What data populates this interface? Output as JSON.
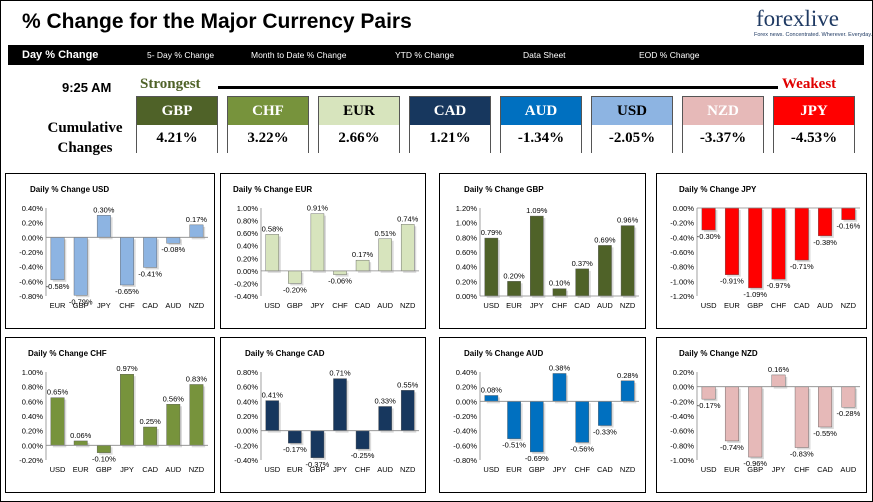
{
  "header": {
    "title": "% Change for the Major Currency Pairs",
    "logo_word_a": "fore",
    "logo_word_x": "x",
    "logo_word_b": "live",
    "logo_tagline": "Forex news. Concentrated. Wherever. Everyday."
  },
  "nav": [
    {
      "label": "Day % Change",
      "active": true
    },
    {
      "label": "5- Day % Change",
      "active": false
    },
    {
      "label": "Month to Date % Change",
      "active": false
    },
    {
      "label": "YTD % Change",
      "active": false
    },
    {
      "label": "Data Sheet",
      "active": false
    },
    {
      "label": "EOD % Change",
      "active": false
    }
  ],
  "ranking": {
    "time": "9:25 AM",
    "strongest_label": "Strongest",
    "weakest_label": "Weakest",
    "cumulative_label_1": "Cumulative",
    "cumulative_label_2": "Changes",
    "currencies": [
      {
        "code": "GBP",
        "change": "4.21%",
        "color": "#4f6228",
        "text": "#ffffff"
      },
      {
        "code": "CHF",
        "change": "3.22%",
        "color": "#77933c",
        "text": "#ffffff"
      },
      {
        "code": "EUR",
        "change": "2.66%",
        "color": "#d7e4bd",
        "text": "#000000"
      },
      {
        "code": "CAD",
        "change": "1.21%",
        "color": "#17375e",
        "text": "#ffffff"
      },
      {
        "code": "AUD",
        "change": "-1.34%",
        "color": "#0070c0",
        "text": "#ffffff"
      },
      {
        "code": "USD",
        "change": "-2.05%",
        "color": "#8db4e2",
        "text": "#000000"
      },
      {
        "code": "NZD",
        "change": "-3.37%",
        "color": "#e6b9b8",
        "text": "#ffffff"
      },
      {
        "code": "JPY",
        "change": "-4.53%",
        "color": "#ff0000",
        "text": "#ffffff"
      }
    ]
  },
  "chart_data": [
    {
      "type": "bar",
      "title": "Daily % Change USD",
      "categories": [
        "EUR",
        "GBP",
        "JPY",
        "CHF",
        "CAD",
        "AUD",
        "NZD"
      ],
      "values": [
        -0.58,
        -0.79,
        0.3,
        -0.65,
        -0.41,
        -0.08,
        0.17
      ],
      "labels": [
        "-0.58%",
        "-0.79%",
        "0.30%",
        "-0.65%",
        "-0.41%",
        "-0.08%",
        "0.17%"
      ],
      "ylim": [
        -0.8,
        0.4
      ],
      "yticks": [
        "0.40%",
        "0.20%",
        "0.00%",
        "-0.20%",
        "-0.40%",
        "-0.60%",
        "-0.80%"
      ],
      "color": "#8db4e2"
    },
    {
      "type": "bar",
      "title": "Daily % Change EUR",
      "categories": [
        "USD",
        "GBP",
        "JPY",
        "CHF",
        "CAD",
        "AUD",
        "NZD"
      ],
      "values": [
        0.58,
        -0.2,
        0.91,
        -0.06,
        0.17,
        0.51,
        0.74
      ],
      "labels": [
        "0.58%",
        "-0.20%",
        "0.91%",
        "-0.06%",
        "0.17%",
        "0.51%",
        "0.74%"
      ],
      "ylim": [
        -0.4,
        1.0
      ],
      "yticks": [
        "1.00%",
        "0.80%",
        "0.60%",
        "0.40%",
        "0.20%",
        "0.00%",
        "-0.20%",
        "-0.40%"
      ],
      "color": "#d7e4bd"
    },
    {
      "type": "bar",
      "title": "Daily % Change GBP",
      "categories": [
        "USD",
        "EUR",
        "JPY",
        "CHF",
        "CAD",
        "AUD",
        "NZD"
      ],
      "values": [
        0.79,
        0.2,
        1.09,
        0.1,
        0.37,
        0.69,
        0.96
      ],
      "labels": [
        "0.79%",
        "0.20%",
        "1.09%",
        "0.10%",
        "0.37%",
        "0.69%",
        "0.96%"
      ],
      "ylim": [
        0.0,
        1.2
      ],
      "yticks": [
        "1.20%",
        "1.00%",
        "0.80%",
        "0.60%",
        "0.40%",
        "0.20%",
        "0.00%"
      ],
      "color": "#4f6228"
    },
    {
      "type": "bar",
      "title": "Daily % Change JPY",
      "categories": [
        "USD",
        "EUR",
        "GBP",
        "CHF",
        "CAD",
        "AUD",
        "NZD"
      ],
      "values": [
        -0.3,
        -0.91,
        -1.09,
        -0.97,
        -0.71,
        -0.38,
        -0.16
      ],
      "labels": [
        "-0.30%",
        "-0.91%",
        "-1.09%",
        "-0.97%",
        "-0.71%",
        "-0.38%",
        "-0.16%"
      ],
      "ylim": [
        -1.2,
        0.0
      ],
      "yticks": [
        "0.00%",
        "-0.20%",
        "-0.40%",
        "-0.60%",
        "-0.80%",
        "-1.00%",
        "-1.20%"
      ],
      "color": "#ff0000"
    },
    {
      "type": "bar",
      "title": "Daily % Change CHF",
      "categories": [
        "USD",
        "EUR",
        "GBP",
        "JPY",
        "CAD",
        "AUD",
        "NZD"
      ],
      "values": [
        0.65,
        0.06,
        -0.1,
        0.97,
        0.25,
        0.56,
        0.83
      ],
      "labels": [
        "0.65%",
        "0.06%",
        "-0.10%",
        "0.97%",
        "0.25%",
        "0.56%",
        "0.83%"
      ],
      "ylim": [
        -0.2,
        1.0
      ],
      "yticks": [
        "1.00%",
        "0.80%",
        "0.60%",
        "0.40%",
        "0.20%",
        "0.00%",
        "-0.20%"
      ],
      "color": "#77933c"
    },
    {
      "type": "bar",
      "title": "Daily % Change CAD",
      "categories": [
        "USD",
        "EUR",
        "GBP",
        "JPY",
        "CHF",
        "AUD",
        "NZD"
      ],
      "values": [
        0.41,
        -0.17,
        -0.37,
        0.71,
        -0.25,
        0.33,
        0.55
      ],
      "labels": [
        "0.41%",
        "-0.17%",
        "-0.37%",
        "0.71%",
        "-0.25%",
        "0.33%",
        "0.55%"
      ],
      "ylim": [
        -0.4,
        0.8
      ],
      "yticks": [
        "0.80%",
        "0.60%",
        "0.40%",
        "0.20%",
        "0.00%",
        "-0.20%",
        "-0.40%"
      ],
      "color": "#17375e"
    },
    {
      "type": "bar",
      "title": "Daily % Change AUD",
      "categories": [
        "USD",
        "EUR",
        "GBP",
        "JPY",
        "CHF",
        "CAD",
        "NZD"
      ],
      "values": [
        0.08,
        -0.51,
        -0.69,
        0.38,
        -0.56,
        -0.33,
        0.28
      ],
      "labels": [
        "0.08%",
        "-0.51%",
        "-0.69%",
        "0.38%",
        "-0.56%",
        "-0.33%",
        "0.28%"
      ],
      "ylim": [
        -0.8,
        0.4
      ],
      "yticks": [
        "0.40%",
        "0.20%",
        "0.00%",
        "-0.20%",
        "-0.40%",
        "-0.60%",
        "-0.80%"
      ],
      "color": "#0070c0"
    },
    {
      "type": "bar",
      "title": "Daily % Change NZD",
      "categories": [
        "USD",
        "EUR",
        "GBP",
        "JPY",
        "CHF",
        "CAD",
        "AUD"
      ],
      "values": [
        -0.17,
        -0.74,
        -0.96,
        0.16,
        -0.83,
        -0.55,
        -0.28
      ],
      "labels": [
        "-0.17%",
        "-0.74%",
        "-0.96%",
        "0.16%",
        "-0.83%",
        "-0.55%",
        "-0.28%"
      ],
      "ylim": [
        -1.0,
        0.2
      ],
      "yticks": [
        "0.20%",
        "0.00%",
        "-0.20%",
        "-0.40%",
        "-0.60%",
        "-0.80%",
        "-1.00%"
      ],
      "color": "#e6b9b8"
    }
  ]
}
